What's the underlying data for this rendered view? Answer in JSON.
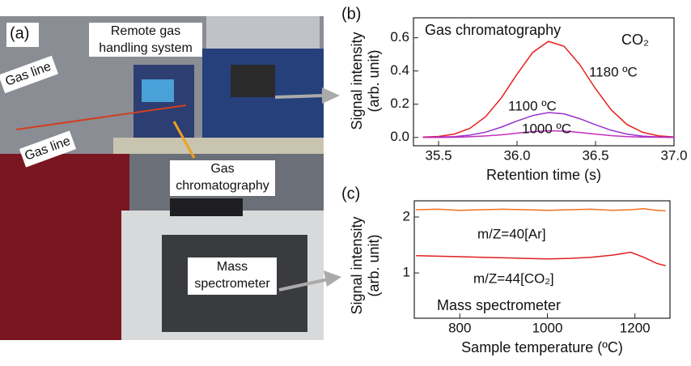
{
  "photo": {
    "panel_label": "(a)",
    "labels": [
      [
        "Remote gas",
        "handling system"
      ],
      [
        "Gas line"
      ],
      [
        "Gas line"
      ],
      [
        "Gas",
        "chromatography"
      ],
      [
        "Mass",
        "spectrometer"
      ]
    ]
  },
  "chart_data": [
    {
      "type": "line",
      "panel_label": "(b)",
      "title": "Gas chromatography",
      "annotation": "CO₂",
      "xlabel": "Retention time (s)",
      "ylabel": [
        "Signal intensity",
        "(arb. unit)"
      ],
      "x": [
        35.4,
        35.5,
        35.6,
        35.7,
        35.8,
        35.9,
        36.0,
        36.1,
        36.2,
        36.3,
        36.4,
        36.5,
        36.6,
        36.7,
        36.8,
        36.9,
        37.0
      ],
      "series": [
        {
          "name": "1180 ºC",
          "color": "#e8201c",
          "values": [
            0.002,
            0.006,
            0.02,
            0.055,
            0.125,
            0.238,
            0.381,
            0.512,
            0.578,
            0.549,
            0.438,
            0.293,
            0.166,
            0.078,
            0.031,
            0.01,
            0.003
          ]
        },
        {
          "name": "1100 ºC",
          "color": "#9a2fd0",
          "values": [
            0.0,
            0.002,
            0.005,
            0.014,
            0.032,
            0.062,
            0.099,
            0.132,
            0.15,
            0.142,
            0.113,
            0.076,
            0.043,
            0.02,
            0.008,
            0.003,
            0.001
          ]
        },
        {
          "name": "1000 ºC",
          "color": "#c030c0",
          "values": [
            0.0,
            0.0,
            0.001,
            0.004,
            0.009,
            0.016,
            0.026,
            0.035,
            0.04,
            0.038,
            0.03,
            0.02,
            0.011,
            0.005,
            0.002,
            0.001,
            0.0
          ]
        }
      ],
      "xlim": [
        35.34,
        37.0
      ],
      "ylim": [
        -0.05,
        0.72
      ],
      "xticks": [
        35.5,
        {
          "value": 36,
          "label": "36.0"
        },
        36.5,
        {
          "value": 37,
          "label": "37.0"
        }
      ],
      "yticks": [
        {
          "value": 0,
          "label": "0.0"
        },
        0.2,
        0.4,
        0.6
      ]
    },
    {
      "type": "line",
      "panel_label": "(c)",
      "annotation": "Mass spectrometer",
      "xlabel": "Sample temperature (ºC)",
      "ylabel": [
        "Signal intensity",
        "(arb. unit)"
      ],
      "x": [
        700,
        750,
        800,
        850,
        900,
        950,
        1000,
        1050,
        1100,
        1150,
        1190,
        1220,
        1250,
        1270
      ],
      "series": [
        {
          "name": "m/Z=40[Ar]",
          "color": "#f07020",
          "values": [
            2.13,
            2.14,
            2.12,
            2.13,
            2.14,
            2.13,
            2.12,
            2.13,
            2.14,
            2.12,
            2.13,
            2.15,
            2.12,
            2.11
          ]
        },
        {
          "name": "m/Z=44[CO₂]",
          "color": "#e02020",
          "values": [
            1.31,
            1.3,
            1.29,
            1.28,
            1.27,
            1.26,
            1.25,
            1.26,
            1.28,
            1.32,
            1.37,
            1.28,
            1.17,
            1.13
          ]
        }
      ],
      "xlim": [
        696,
        1280
      ],
      "ylim": [
        0.19,
        2.29
      ],
      "xticks": [
        800,
        1000,
        1200
      ],
      "yticks": [
        1,
        2
      ]
    }
  ]
}
